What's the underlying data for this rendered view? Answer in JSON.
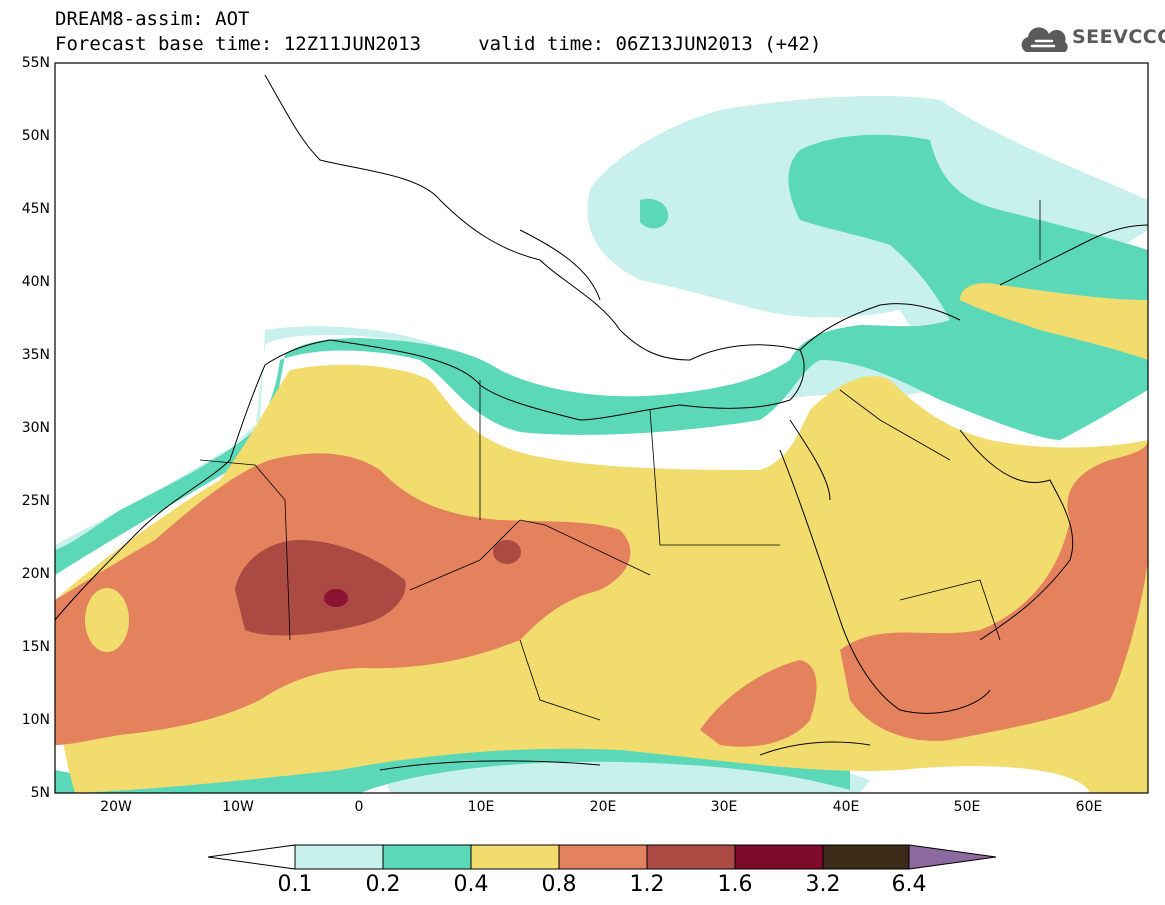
{
  "header": {
    "title_line1": "DREAM8-assim: AOT",
    "title_line2": "Forecast base time: 12Z11JUN2013     valid time: 06Z13JUN2013 (+42)",
    "logo_text": "SEEVCCC"
  },
  "map": {
    "lon_range": [
      -25,
      65
    ],
    "lat_range": [
      5,
      55
    ],
    "lat_labels": [
      "55N",
      "50N",
      "45N",
      "40N",
      "35N",
      "30N",
      "25N",
      "20N",
      "15N",
      "10N",
      "5N"
    ],
    "lon_labels": [
      "20W",
      "10W",
      "0",
      "10E",
      "20E",
      "30E",
      "40E",
      "50E",
      "60E"
    ]
  },
  "colorbar": {
    "labels": [
      "0.1",
      "0.2",
      "0.4",
      "0.8",
      "1.2",
      "1.6",
      "3.2",
      "6.4"
    ],
    "colors": [
      "#ffffff",
      "#c8f0ec",
      "#5ad8b8",
      "#f2dc6e",
      "#e4825e",
      "#aa4a42",
      "#7e0a2e",
      "#3c2a18",
      "#8c6aa0"
    ]
  },
  "fill_colors": {
    "c1": "#c8f0ec",
    "c2": "#5ad8b8",
    "c3": "#f2dc6e",
    "c4": "#e4825e",
    "c5": "#aa4a42",
    "c6": "#8a1232"
  }
}
